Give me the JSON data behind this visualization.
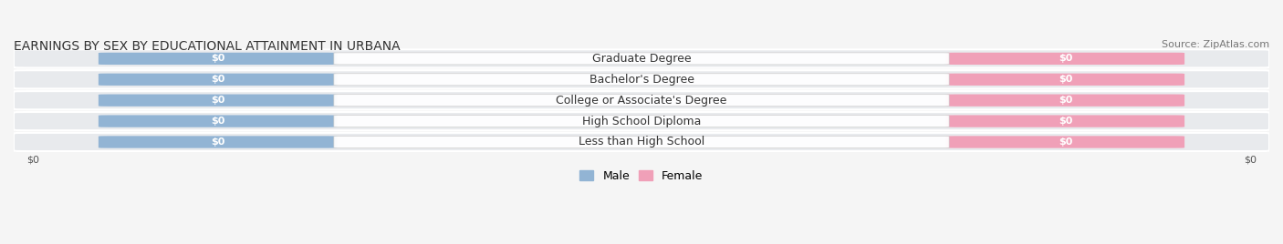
{
  "title": "EARNINGS BY SEX BY EDUCATIONAL ATTAINMENT IN URBANA",
  "source": "Source: ZipAtlas.com",
  "categories": [
    "Less than High School",
    "High School Diploma",
    "College or Associate's Degree",
    "Bachelor's Degree",
    "Graduate Degree"
  ],
  "male_values": [
    0,
    0,
    0,
    0,
    0
  ],
  "female_values": [
    0,
    0,
    0,
    0,
    0
  ],
  "male_color": "#92b4d4",
  "female_color": "#f0a0b8",
  "male_label": "Male",
  "female_label": "Female",
  "bar_label": "$0",
  "row_bg_color": "#e8eaed",
  "background_color": "#f5f5f5",
  "xlim": [
    -1,
    1
  ],
  "xlabel_left": "$0",
  "xlabel_right": "$0",
  "title_fontsize": 10,
  "source_fontsize": 8,
  "label_fontsize": 8,
  "category_fontsize": 9,
  "bar_height": 0.55,
  "bar_width": 0.35
}
